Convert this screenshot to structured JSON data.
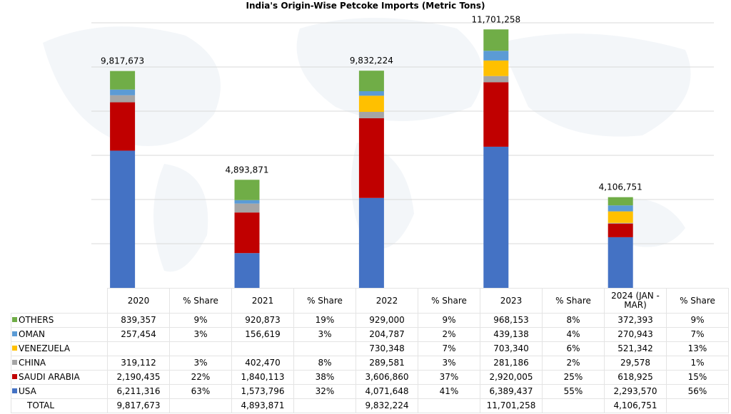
{
  "chart_data": {
    "type": "bar",
    "stacked": true,
    "title": "India's Origin-Wise Petcoke Imports (Metric Tons)",
    "categories": [
      "2020",
      "2021",
      "2022",
      "2023",
      "2024 (JAN - MAR)"
    ],
    "share_header": "% Share",
    "ylim": [
      0,
      12000000
    ],
    "grid": true,
    "series": [
      {
        "name": "USA",
        "color": "#4472C4",
        "values": [
          6211316,
          1573796,
          4071648,
          6389437,
          2293570
        ],
        "labels": [
          "6,211,316",
          "1,573,796",
          "4,071,648",
          "6,389,437",
          "2,293,570"
        ],
        "shares": [
          "63%",
          "32%",
          "41%",
          "55%",
          "56%"
        ]
      },
      {
        "name": "SAUDI ARABIA",
        "color": "#C00000",
        "values": [
          2190435,
          1840113,
          3606860,
          2920005,
          618925
        ],
        "labels": [
          "2,190,435",
          "1,840,113",
          "3,606,860",
          "2,920,005",
          "618,925"
        ],
        "shares": [
          "22%",
          "38%",
          "37%",
          "25%",
          "15%"
        ]
      },
      {
        "name": "CHINA",
        "color": "#A5A5A5",
        "values": [
          319112,
          402470,
          289581,
          281186,
          29578
        ],
        "labels": [
          "319,112",
          "402,470",
          "289,581",
          "281,186",
          "29,578"
        ],
        "shares": [
          "3%",
          "8%",
          "3%",
          "2%",
          "1%"
        ]
      },
      {
        "name": "VENEZUELA",
        "color": "#FFC000",
        "values": [
          0,
          0,
          730348,
          703340,
          521342
        ],
        "labels": [
          "",
          "",
          "730,348",
          "703,340",
          "521,342"
        ],
        "shares": [
          "",
          "",
          "7%",
          "6%",
          "13%"
        ]
      },
      {
        "name": "OMAN",
        "color": "#5B9BD5",
        "values": [
          257454,
          156619,
          204787,
          439138,
          270943
        ],
        "labels": [
          "257,454",
          "156,619",
          "204,787",
          "439,138",
          "270,943"
        ],
        "shares": [
          "3%",
          "3%",
          "2%",
          "4%",
          "7%"
        ]
      },
      {
        "name": "OTHERS",
        "color": "#70AD47",
        "values": [
          839357,
          920873,
          929000,
          968153,
          372393
        ],
        "labels": [
          "839,357",
          "920,873",
          "929,000",
          "968,153",
          "372,393"
        ],
        "shares": [
          "9%",
          "19%",
          "9%",
          "8%",
          "9%"
        ]
      }
    ],
    "total_label": "TOTAL",
    "totals": [
      "9,817,673",
      "4,893,871",
      "9,832,224",
      "11,701,258",
      "4,106,751"
    ]
  }
}
